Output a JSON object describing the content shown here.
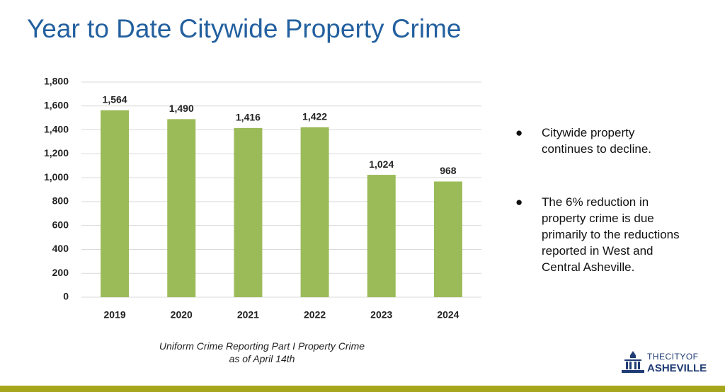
{
  "title": "Year to Date Citywide Property Crime",
  "chart_data": {
    "type": "bar",
    "categories": [
      "2019",
      "2020",
      "2021",
      "2022",
      "2023",
      "2024"
    ],
    "values": [
      1564,
      1490,
      1416,
      1422,
      1024,
      968
    ],
    "value_labels": [
      "1,564",
      "1,490",
      "1,416",
      "1,422",
      "1,024",
      "968"
    ],
    "color": "#9bbb59",
    "ylim": [
      0,
      1800
    ],
    "yticks": [
      0,
      200,
      400,
      600,
      800,
      {
        "value": 1000,
        "label": "1,000"
      },
      {
        "value": 1200,
        "label": "1,200"
      },
      {
        "value": 1400,
        "label": "1,400"
      },
      {
        "value": 1600,
        "label": "1,600"
      },
      {
        "value": 1800,
        "label": "1,800"
      }
    ],
    "grid": true
  },
  "caption": [
    "Uniform Crime Reporting Part I Property Crime",
    "as of April 14th"
  ],
  "bullets": [
    "Citywide property continues to decline.",
    "The 6% reduction in property crime is due primarily to the reductions reported in West and Central Asheville."
  ],
  "logo": {
    "top": "THECITYOF",
    "bottom": "ASHEVILLE"
  }
}
